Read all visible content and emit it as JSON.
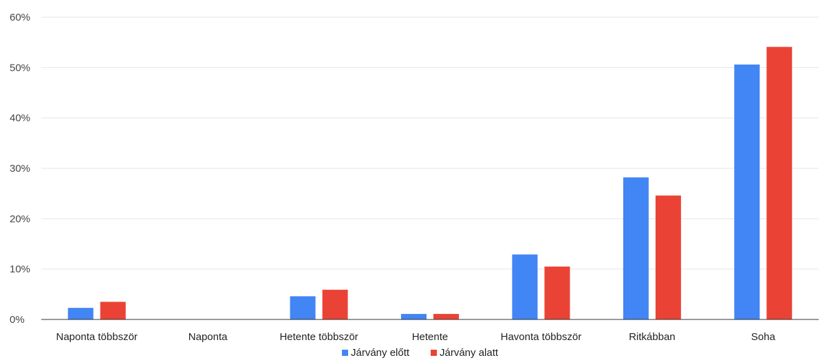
{
  "chart_data": {
    "type": "bar",
    "title": "",
    "xlabel": "",
    "ylabel": "",
    "categories": [
      "Naponta többször",
      "Naponta",
      "Hetente többször",
      "Hetente",
      "Havonta többször",
      "Ritkábban",
      "Soha"
    ],
    "series": [
      {
        "name": "Járvány előtt",
        "color": "#4285f4",
        "values": [
          2.3,
          0,
          4.6,
          1.1,
          12.9,
          28.2,
          50.6
        ]
      },
      {
        "name": "Járvány alatt",
        "color": "#ea4335",
        "values": [
          3.5,
          0,
          5.9,
          1.1,
          10.5,
          24.6,
          54.1
        ]
      }
    ],
    "ylim": [
      0,
      60
    ],
    "yticks": [
      0,
      10,
      20,
      30,
      40,
      50,
      60
    ],
    "ytick_labels": [
      "0%",
      "10%",
      "20%",
      "30%",
      "40%",
      "50%",
      "60%"
    ],
    "grid": true,
    "legend_position": "bottom"
  }
}
